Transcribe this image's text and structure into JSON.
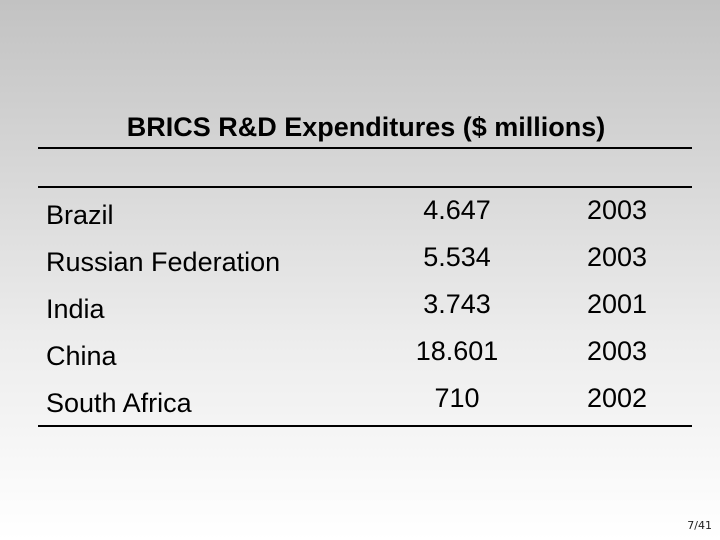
{
  "slide": {
    "title": "BRICS R&D Expenditures ($ millions)",
    "page_number": "7/41"
  },
  "table": {
    "rows": [
      {
        "country": "Brazil",
        "value": "4.647",
        "year": "2003"
      },
      {
        "country": "Russian Federation",
        "value": "5.534",
        "year": "2003"
      },
      {
        "country": "India",
        "value": "3.743",
        "year": "2001"
      },
      {
        "country": "China",
        "value": "18.601",
        "year": "2003"
      },
      {
        "country": "South Africa",
        "value": "710",
        "year": "2002"
      }
    ]
  }
}
